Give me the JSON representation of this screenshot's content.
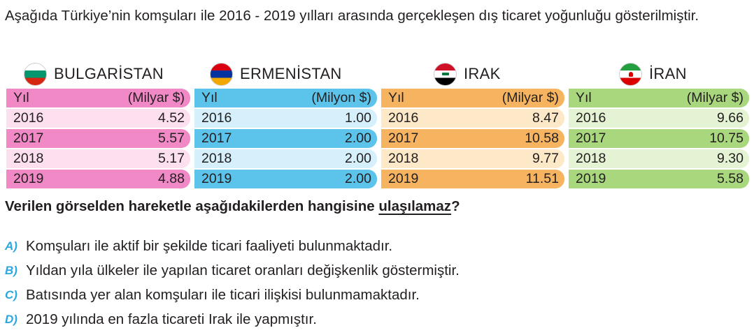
{
  "intro": "Aşağıda Türkiye’nin komşuları ile 2016 - 2019 yılları arasında gerçekleşen dış ticaret yoğunluğu gösterilmiştir.",
  "colors": {
    "bulgaria": [
      "#f089c6",
      "#fde0f0"
    ],
    "armenia": [
      "#5cc3ea",
      "#d5f0fb"
    ],
    "iraq": [
      "#f6b460",
      "#fde8c7"
    ],
    "iran": [
      "#a8d77e",
      "#e4f3d3"
    ]
  },
  "countries": [
    {
      "name": "BULGARİSTAN",
      "flag": "bulgaria-flag-icon",
      "header": {
        "year": "Yıl",
        "unit": "(Milyar $)"
      },
      "rows": [
        [
          "2016",
          "4.52"
        ],
        [
          "2017",
          "5.57"
        ],
        [
          "2018",
          "5.17"
        ],
        [
          "2019",
          "4.88"
        ]
      ]
    },
    {
      "name": "ERMENİSTAN",
      "flag": "armenia-flag-icon",
      "header": {
        "year": "Yıl",
        "unit": "(Milyon $)"
      },
      "rows": [
        [
          "2016",
          "1.00"
        ],
        [
          "2017",
          "2.00"
        ],
        [
          "2018",
          "2.00"
        ],
        [
          "2019",
          "2.00"
        ]
      ]
    },
    {
      "name": "IRAK",
      "flag": "iraq-flag-icon",
      "header": {
        "year": "Yıl",
        "unit": "(Milyar $)"
      },
      "rows": [
        [
          "2016",
          "8.47"
        ],
        [
          "2017",
          "10.58"
        ],
        [
          "2018",
          "9.77"
        ],
        [
          "2019",
          "11.51"
        ]
      ]
    },
    {
      "name": "İRAN",
      "flag": "iran-flag-icon",
      "header": {
        "year": "Yıl",
        "unit": "(Milyar $)"
      },
      "rows": [
        [
          "2016",
          "9.66"
        ],
        [
          "2017",
          "10.75"
        ],
        [
          "2018",
          "9.30"
        ],
        [
          "2019",
          "5.58"
        ]
      ]
    }
  ],
  "question": {
    "before": "Verilen görselden hareketle aşağıdakilerden hangisine ",
    "underlined": "ulaşılamaz",
    "after": "?"
  },
  "options": [
    {
      "letter": "A)",
      "text": "Komşuları ile aktif bir şekilde ticari faaliyeti bulunmaktadır."
    },
    {
      "letter": "B)",
      "text": "Yıldan yıla ülkeler ile yapılan ticaret oranları değişkenlik göstermiştir."
    },
    {
      "letter": "C)",
      "text": "Batısında yer alan komşuları ile ticari ilişkisi bulunmamaktadır."
    },
    {
      "letter": "D)",
      "text": "2019 yılında en fazla ticareti Irak ile yapmıştır."
    }
  ]
}
